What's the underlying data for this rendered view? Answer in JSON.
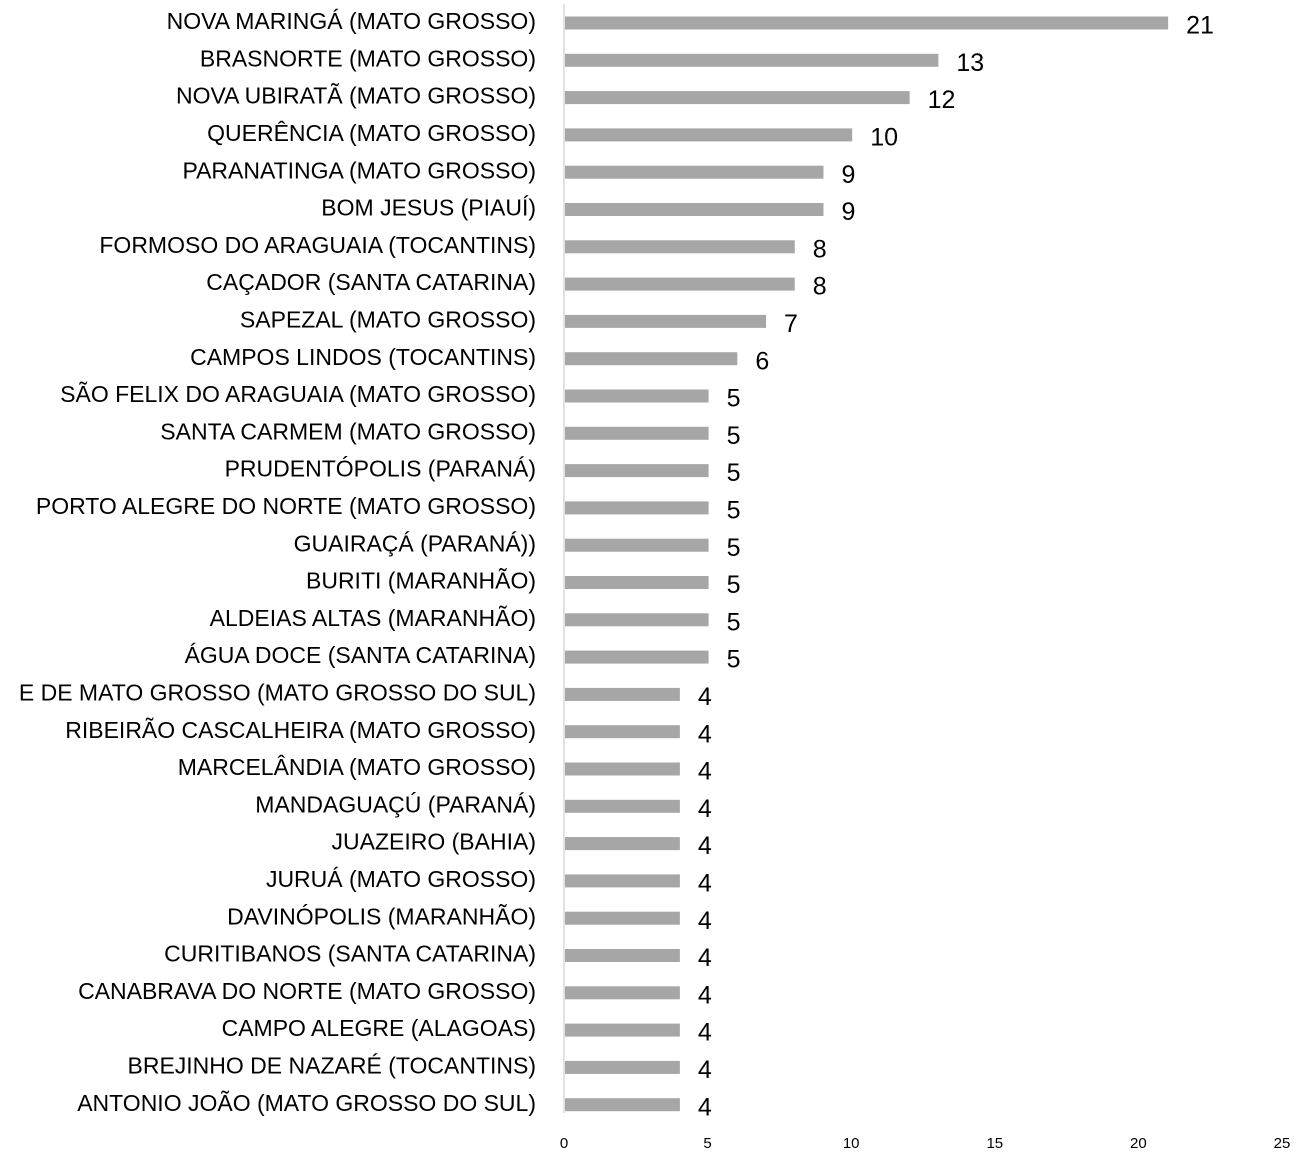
{
  "chart_data": {
    "type": "bar",
    "orientation": "horizontal",
    "title": "",
    "xlabel": "",
    "ylabel": "",
    "xlim": [
      0,
      25
    ],
    "x_ticks": [
      0,
      5,
      10,
      15,
      20,
      25
    ],
    "grid": false,
    "legend": "none",
    "bar_color": "#a6a6a6",
    "axis_color": "#d9d9d9",
    "categories": [
      "NOVA MARINGÁ (MATO GROSSO)",
      "BRASNORTE (MATO GROSSO)",
      "NOVA UBIRATÃ (MATO GROSSO)",
      "QUERÊNCIA (MATO GROSSO)",
      "PARANATINGA (MATO GROSSO)",
      "BOM JESUS (PIAUÍ)",
      "FORMOSO DO ARAGUAIA (TOCANTINS)",
      "CAÇADOR (SANTA CATARINA)",
      "SAPEZAL (MATO GROSSO)",
      "CAMPOS LINDOS (TOCANTINS)",
      "SÃO FELIX DO ARAGUAIA (MATO GROSSO)",
      "SANTA CARMEM (MATO GROSSO)",
      "PRUDENTÓPOLIS  (PARANÁ)",
      "PORTO ALEGRE DO NORTE (MATO GROSSO)",
      "GUAIRAÇÁ  (PARANÁ))",
      "BURITI (MARANHÃO)",
      "ALDEIAS ALTAS (MARANHÃO)",
      "ÁGUA DOCE (SANTA CATARINA)",
      "E DE MATO GROSSO (MATO GROSSO DO SUL)",
      "RIBEIRÃO CASCALHEIRA (MATO GROSSO)",
      "MARCELÂNDIA (MATO GROSSO)",
      "MANDAGUAÇÚ (PARANÁ)",
      "JUAZEIRO (BAHIA)",
      "JURUÁ (MATO GROSSO)",
      "DAVINÓPOLIS (MARANHÃO)",
      "CURITIBANOS (SANTA CATARINA)",
      "CANABRAVA DO NORTE (MATO GROSSO)",
      "CAMPO ALEGRE (ALAGOAS)",
      "BREJINHO DE NAZARÉ (TOCANTINS)",
      "ANTONIO JOÃO (MATO GROSSO DO SUL)"
    ],
    "values": [
      21,
      13,
      12,
      10,
      9,
      9,
      8,
      8,
      7,
      6,
      5,
      5,
      5,
      5,
      5,
      5,
      5,
      5,
      4,
      4,
      4,
      4,
      4,
      4,
      4,
      4,
      4,
      4,
      4,
      4
    ]
  }
}
